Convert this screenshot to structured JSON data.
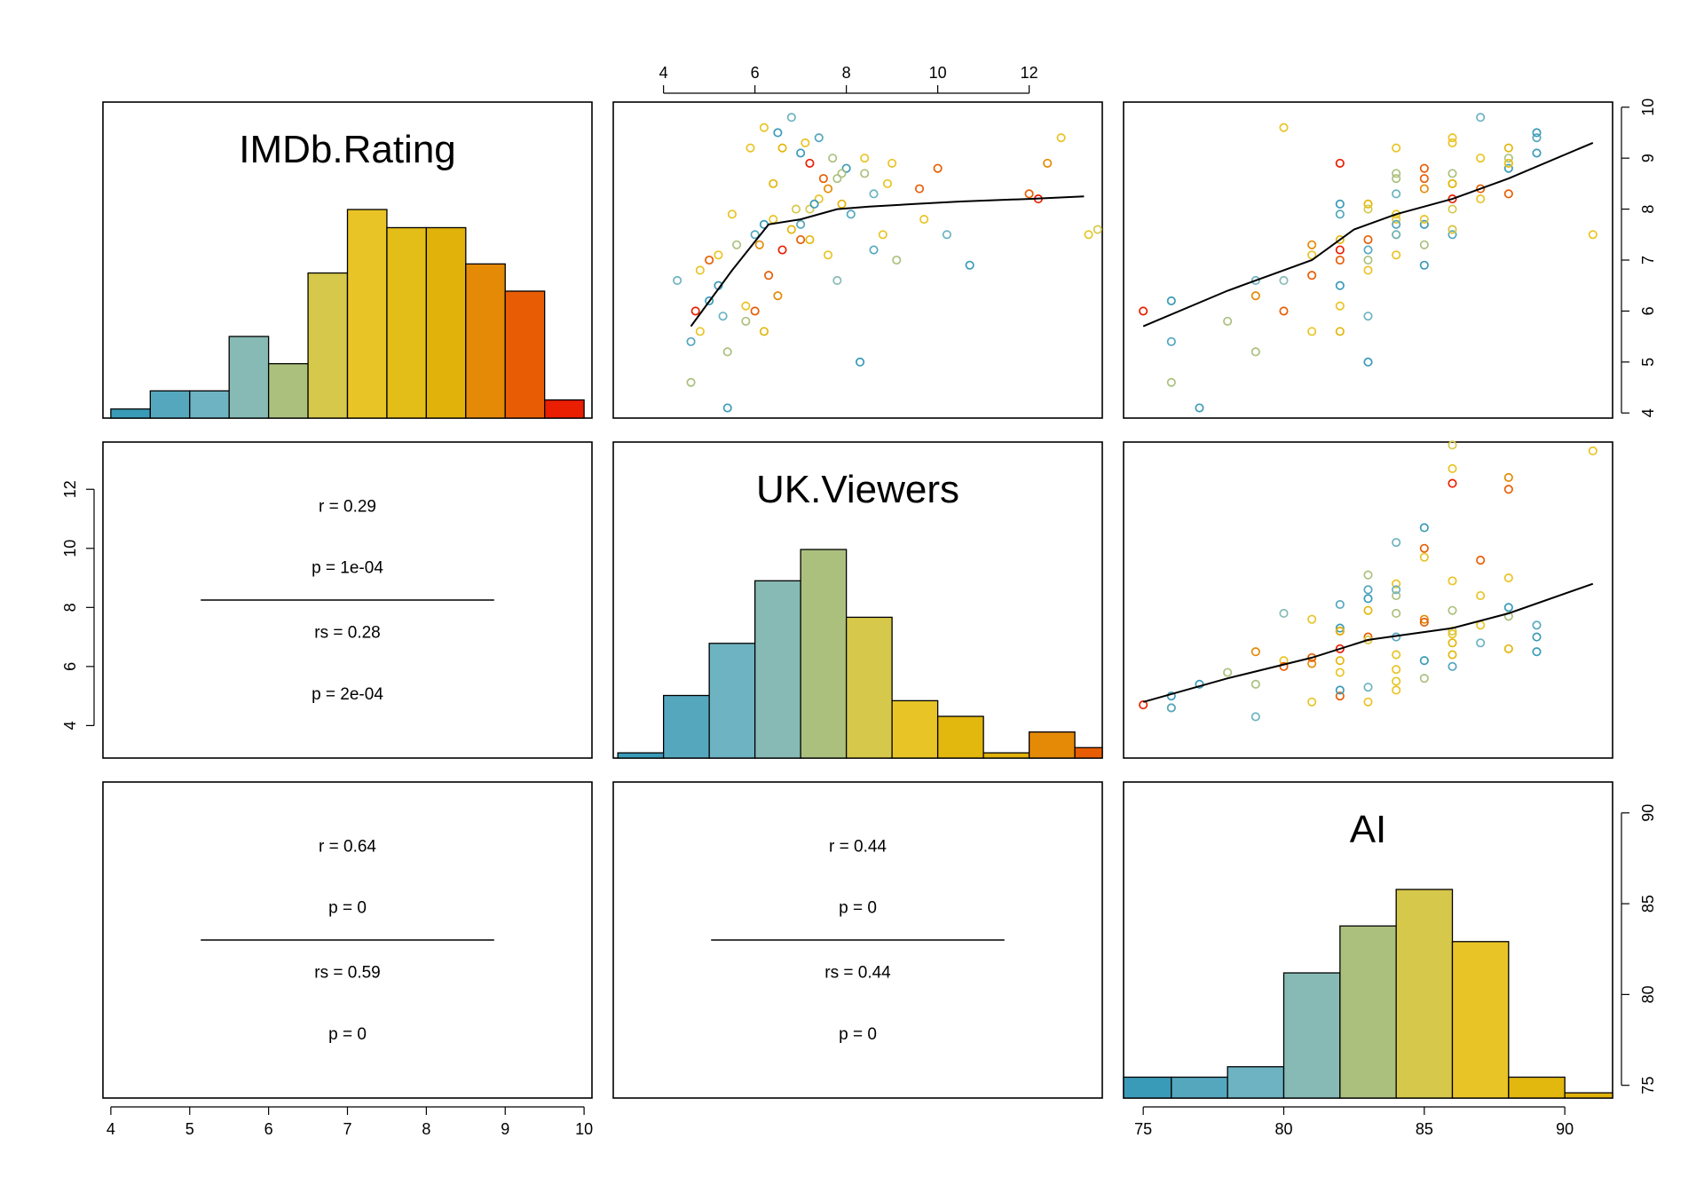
{
  "chart_data": {
    "type": "scatter",
    "variables": [
      "IMDb.Rating",
      "UK.Viewers",
      "AI"
    ],
    "diagonal_labels": [
      "IMDb.Rating",
      "UK.Viewers",
      "AI"
    ],
    "axis_ticks": {
      "top_uk_viewers": [
        "4",
        "6",
        "8",
        "10",
        "12"
      ],
      "bottom_imdb": [
        "4",
        "5",
        "6",
        "7",
        "8",
        "9",
        "10"
      ],
      "bottom_ai": [
        "75",
        "80",
        "85",
        "90"
      ],
      "left_uk_viewers": [
        "4",
        "6",
        "8",
        "10",
        "12"
      ],
      "right_imdb": [
        "4",
        "5",
        "6",
        "7",
        "8",
        "9",
        "10"
      ],
      "right_ai": [
        "75",
        "80",
        "85",
        "90"
      ]
    },
    "axis_ranges": {
      "IMDb.Rating": [
        3.9,
        10.1
      ],
      "UK.Viewers": [
        2.9,
        13.6
      ],
      "AI": [
        74.3,
        91.7
      ]
    },
    "color_scale": [
      "#3a9bb8",
      "#55a7be",
      "#6db3c2",
      "#87bab5",
      "#acc07e",
      "#d6c84a",
      "#e9c426",
      "#e2b70e",
      "#e48a07",
      "#e85d03",
      "#ea1e00"
    ],
    "histograms": {
      "IMDb.Rating": {
        "bin_edges": [
          4.0,
          4.5,
          5.0,
          5.5,
          6.0,
          6.5,
          7.0,
          7.5,
          8.0,
          8.5,
          9.0,
          9.5,
          10.0
        ],
        "counts": [
          1,
          3,
          3,
          9,
          6,
          16,
          23,
          21,
          21,
          17,
          14,
          2
        ],
        "colors": [
          "#3a9bb8",
          "#55a7be",
          "#6db3c2",
          "#87bab5",
          "#acc07e",
          "#d6c84a",
          "#e9c426",
          "#e3bd18",
          "#e0b20a",
          "#e48a07",
          "#e85d03",
          "#ea1e00"
        ]
      },
      "UK.Viewers": {
        "bin_edges": [
          3,
          4,
          5,
          6,
          7,
          8,
          9,
          10,
          11,
          12,
          13,
          14
        ],
        "counts": [
          1,
          12,
          22,
          34,
          40,
          27,
          11,
          8,
          1,
          5,
          2
        ],
        "colors": [
          "#3a9bb8",
          "#55a7be",
          "#6db3c2",
          "#87bab5",
          "#acc07e",
          "#d6c84a",
          "#e9c426",
          "#e2b70e",
          "#e0b20a",
          "#e48a07",
          "#e85d03"
        ]
      },
      "AI": {
        "bin_edges": [
          74,
          76,
          78,
          80,
          82,
          84,
          86,
          88,
          90,
          92
        ],
        "counts": [
          4,
          4,
          6,
          24,
          33,
          40,
          30,
          4,
          1
        ],
        "colors": [
          "#3a9bb8",
          "#55a7be",
          "#6db3c2",
          "#87bab5",
          "#acc07e",
          "#d6c84a",
          "#e9c426",
          "#e2b70e",
          "#e0b20a"
        ]
      }
    },
    "correlations": {
      "imdb_uk": {
        "r": "r = 0.29",
        "p": "p = 1e-04",
        "rs": "rs = 0.28",
        "p_s": "p = 2e-04"
      },
      "imdb_ai": {
        "r": "r = 0.64",
        "p": "p = 0",
        "rs": "rs = 0.59",
        "p_s": "p = 0"
      },
      "uk_ai": {
        "r": "r = 0.44",
        "p": "p = 0",
        "rs": "rs = 0.44",
        "p_s": "p = 0"
      }
    },
    "loess": {
      "imdb_vs_uk": [
        [
          4.6,
          5.7
        ],
        [
          5.5,
          6.8
        ],
        [
          6.3,
          7.7
        ],
        [
          7.0,
          7.8
        ],
        [
          7.8,
          8.0
        ],
        [
          8.5,
          8.05
        ],
        [
          9.5,
          8.1
        ],
        [
          10.5,
          8.15
        ],
        [
          12.0,
          8.2
        ],
        [
          13.2,
          8.25
        ]
      ],
      "imdb_vs_ai": [
        [
          75,
          5.7
        ],
        [
          78,
          6.4
        ],
        [
          81,
          7.0
        ],
        [
          82.5,
          7.6
        ],
        [
          84,
          7.9
        ],
        [
          86,
          8.2
        ],
        [
          88,
          8.6
        ],
        [
          91,
          9.3
        ]
      ],
      "uk_vs_ai": [
        [
          75,
          4.8
        ],
        [
          78,
          5.6
        ],
        [
          81,
          6.3
        ],
        [
          83,
          6.9
        ],
        [
          86,
          7.3
        ],
        [
          88,
          7.8
        ],
        [
          91,
          8.8
        ]
      ]
    },
    "points": [
      {
        "imdb": 4.6,
        "uk": 4.6,
        "ai": 76,
        "c": "#acc07e"
      },
      {
        "imdb": 4.1,
        "uk": 5.4,
        "ai": 77,
        "c": "#3a9bb8"
      },
      {
        "imdb": 5.0,
        "uk": 8.3,
        "ai": 83,
        "c": "#3a9bb8"
      },
      {
        "imdb": 5.2,
        "uk": 5.4,
        "ai": 79,
        "c": "#acc07e"
      },
      {
        "imdb": 5.4,
        "uk": 4.6,
        "ai": 76,
        "c": "#55a7be"
      },
      {
        "imdb": 5.6,
        "uk": 4.8,
        "ai": 81,
        "c": "#e9c426"
      },
      {
        "imdb": 5.8,
        "uk": 5.8,
        "ai": 78,
        "c": "#acc07e"
      },
      {
        "imdb": 6.0,
        "uk": 4.7,
        "ai": 75,
        "c": "#ea1e00"
      },
      {
        "imdb": 6.1,
        "uk": 5.8,
        "ai": 82,
        "c": "#e9c426"
      },
      {
        "imdb": 6.2,
        "uk": 5.0,
        "ai": 76,
        "c": "#3a9bb8"
      },
      {
        "imdb": 6.6,
        "uk": 4.3,
        "ai": 79,
        "c": "#6db3c2"
      },
      {
        "imdb": 6.8,
        "uk": 4.8,
        "ai": 83,
        "c": "#e9c426"
      },
      {
        "imdb": 7.0,
        "uk": 5.0,
        "ai": 82,
        "c": "#e85d03"
      },
      {
        "imdb": 7.1,
        "uk": 5.2,
        "ai": 84,
        "c": "#e9c426"
      },
      {
        "imdb": 7.3,
        "uk": 5.6,
        "ai": 85,
        "c": "#acc07e"
      },
      {
        "imdb": 7.5,
        "uk": 6.0,
        "ai": 86,
        "c": "#55a7be"
      },
      {
        "imdb": 7.7,
        "uk": 6.2,
        "ai": 85,
        "c": "#3a9bb8"
      },
      {
        "imdb": 7.8,
        "uk": 6.4,
        "ai": 84,
        "c": "#e9c426"
      },
      {
        "imdb": 7.6,
        "uk": 6.8,
        "ai": 86,
        "c": "#e2b70e"
      },
      {
        "imdb": 7.4,
        "uk": 7.0,
        "ai": 83,
        "c": "#e85d03"
      },
      {
        "imdb": 7.2,
        "uk": 6.6,
        "ai": 82,
        "c": "#ea1e00"
      },
      {
        "imdb": 8.0,
        "uk": 7.2,
        "ai": 86,
        "c": "#d6c84a"
      },
      {
        "imdb": 8.2,
        "uk": 7.4,
        "ai": 87,
        "c": "#e9c426"
      },
      {
        "imdb": 8.4,
        "uk": 7.6,
        "ai": 85,
        "c": "#e48a07"
      },
      {
        "imdb": 8.6,
        "uk": 7.8,
        "ai": 84,
        "c": "#acc07e"
      },
      {
        "imdb": 8.8,
        "uk": 8.0,
        "ai": 88,
        "c": "#3a9bb8"
      },
      {
        "imdb": 9.0,
        "uk": 8.4,
        "ai": 87,
        "c": "#e9c426"
      },
      {
        "imdb": 9.2,
        "uk": 6.6,
        "ai": 88,
        "c": "#e2b70e"
      },
      {
        "imdb": 9.4,
        "uk": 7.4,
        "ai": 89,
        "c": "#55a7be"
      },
      {
        "imdb": 9.6,
        "uk": 6.2,
        "ai": 80,
        "c": "#e9c426"
      },
      {
        "imdb": 9.8,
        "uk": 6.8,
        "ai": 87,
        "c": "#6db3c2"
      },
      {
        "imdb": 9.1,
        "uk": 7.0,
        "ai": 89,
        "c": "#3a9bb8"
      },
      {
        "imdb": 8.9,
        "uk": 7.2,
        "ai": 82,
        "c": "#ea1e00"
      },
      {
        "imdb": 8.7,
        "uk": 8.4,
        "ai": 84,
        "c": "#acc07e"
      },
      {
        "imdb": 8.5,
        "uk": 8.9,
        "ai": 86,
        "c": "#e9c426"
      },
      {
        "imdb": 8.3,
        "uk": 12.0,
        "ai": 88,
        "c": "#e85d03"
      },
      {
        "imdb": 8.1,
        "uk": 7.9,
        "ai": 83,
        "c": "#e2b70e"
      },
      {
        "imdb": 7.9,
        "uk": 8.1,
        "ai": 82,
        "c": "#55a7be"
      },
      {
        "imdb": 7.5,
        "uk": 8.8,
        "ai": 84,
        "c": "#e9c426"
      },
      {
        "imdb": 7.0,
        "uk": 9.1,
        "ai": 83,
        "c": "#acc07e"
      },
      {
        "imdb": 6.9,
        "uk": 10.7,
        "ai": 85,
        "c": "#3a9bb8"
      },
      {
        "imdb": 7.5,
        "uk": 10.2,
        "ai": 84,
        "c": "#6db3c2"
      },
      {
        "imdb": 8.2,
        "uk": 12.2,
        "ai": 86,
        "c": "#ea1e00"
      },
      {
        "imdb": 8.9,
        "uk": 12.4,
        "ai": 88,
        "c": "#e48a07"
      },
      {
        "imdb": 8.8,
        "uk": 10.0,
        "ai": 85,
        "c": "#e85d03"
      },
      {
        "imdb": 9.4,
        "uk": 12.7,
        "ai": 86,
        "c": "#e9c426"
      },
      {
        "imdb": 7.5,
        "uk": 13.3,
        "ai": 91,
        "c": "#e9c426"
      },
      {
        "imdb": 7.6,
        "uk": 13.5,
        "ai": 86,
        "c": "#d6c84a"
      },
      {
        "imdb": 6.0,
        "uk": 6.0,
        "ai": 80,
        "c": "#e85d03"
      },
      {
        "imdb": 6.5,
        "uk": 5.2,
        "ai": 82,
        "c": "#3a9bb8"
      },
      {
        "imdb": 7.3,
        "uk": 6.1,
        "ai": 81,
        "c": "#e48a07"
      },
      {
        "imdb": 7.9,
        "uk": 5.5,
        "ai": 84,
        "c": "#e9c426"
      },
      {
        "imdb": 8.5,
        "uk": 6.4,
        "ai": 86,
        "c": "#e2b70e"
      },
      {
        "imdb": 9.0,
        "uk": 7.7,
        "ai": 88,
        "c": "#acc07e"
      },
      {
        "imdb": 9.2,
        "uk": 5.9,
        "ai": 84,
        "c": "#e9c426"
      },
      {
        "imdb": 8.0,
        "uk": 6.9,
        "ai": 83,
        "c": "#d6c84a"
      },
      {
        "imdb": 7.7,
        "uk": 7.0,
        "ai": 84,
        "c": "#55a7be"
      },
      {
        "imdb": 8.6,
        "uk": 7.5,
        "ai": 85,
        "c": "#e85d03"
      },
      {
        "imdb": 8.1,
        "uk": 7.3,
        "ai": 82,
        "c": "#3a9bb8"
      },
      {
        "imdb": 7.1,
        "uk": 7.6,
        "ai": 81,
        "c": "#e9c426"
      },
      {
        "imdb": 6.6,
        "uk": 7.8,
        "ai": 80,
        "c": "#87bab5"
      },
      {
        "imdb": 6.3,
        "uk": 6.5,
        "ai": 79,
        "c": "#e48a07"
      },
      {
        "imdb": 5.9,
        "uk": 5.3,
        "ai": 83,
        "c": "#6db3c2"
      },
      {
        "imdb": 5.6,
        "uk": 6.2,
        "ai": 82,
        "c": "#e2b70e"
      },
      {
        "imdb": 9.3,
        "uk": 7.1,
        "ai": 86,
        "c": "#e9c426"
      },
      {
        "imdb": 9.5,
        "uk": 6.5,
        "ai": 89,
        "c": "#3a9bb8"
      },
      {
        "imdb": 8.4,
        "uk": 9.6,
        "ai": 87,
        "c": "#e85d03"
      },
      {
        "imdb": 7.8,
        "uk": 9.7,
        "ai": 85,
        "c": "#e9c426"
      },
      {
        "imdb": 8.7,
        "uk": 7.9,
        "ai": 86,
        "c": "#acc07e"
      },
      {
        "imdb": 8.3,
        "uk": 8.6,
        "ai": 84,
        "c": "#6db3c2"
      },
      {
        "imdb": 7.4,
        "uk": 7.2,
        "ai": 82,
        "c": "#e2b70e"
      },
      {
        "imdb": 6.7,
        "uk": 6.3,
        "ai": 81,
        "c": "#e85d03"
      },
      {
        "imdb": 7.2,
        "uk": 8.6,
        "ai": 83,
        "c": "#55a7be"
      },
      {
        "imdb": 8.9,
        "uk": 9.0,
        "ai": 88,
        "c": "#e9c426"
      }
    ]
  }
}
